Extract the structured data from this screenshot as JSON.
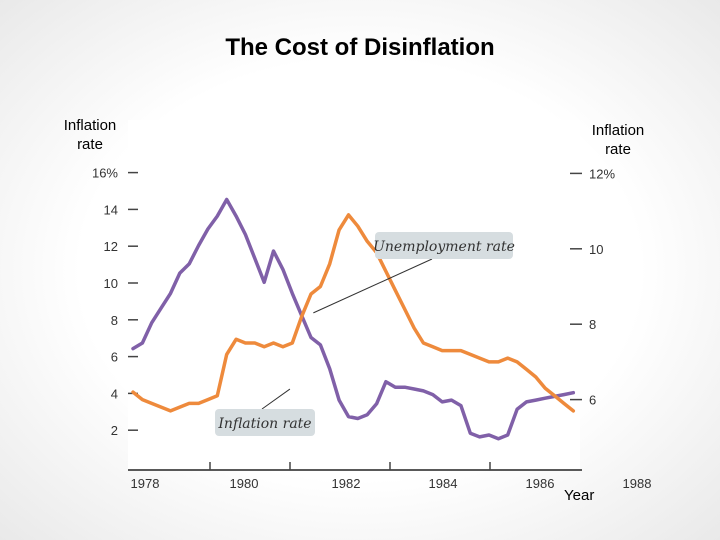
{
  "title": "The Cost of Disinflation",
  "chart_data": {
    "type": "line",
    "title": "The Cost of Disinflation",
    "xlabel": "Year",
    "ylabel_left": "Inflation rate",
    "ylabel_right": "Inflation rate",
    "x_ticks": [
      "1978",
      "1980",
      "1982",
      "1984",
      "1986",
      "1988"
    ],
    "xlim": [
      1978,
      1987.5
    ],
    "left_axis": {
      "ticks": [
        {
          "value": 16,
          "label": "16%"
        },
        {
          "value": 14,
          "label": "14"
        },
        {
          "value": 12,
          "label": "12"
        },
        {
          "value": 10,
          "label": "10"
        },
        {
          "value": 8,
          "label": "8"
        },
        {
          "value": 6,
          "label": "6"
        },
        {
          "value": 4,
          "label": "4"
        },
        {
          "value": 2,
          "label": "2"
        }
      ],
      "ylim": [
        0,
        16
      ]
    },
    "right_axis": {
      "ticks": [
        {
          "value": 12,
          "label": "12%"
        },
        {
          "value": 10,
          "label": "10"
        },
        {
          "value": 8,
          "label": "8"
        },
        {
          "value": 6,
          "label": "6"
        }
      ],
      "ylim": [
        4,
        12
      ]
    },
    "grid": false,
    "series": [
      {
        "name": "Inflation rate",
        "axis": "left",
        "color": "#8060a8",
        "x": [
          1978.0,
          1978.2,
          1978.4,
          1978.6,
          1978.8,
          1979.0,
          1979.2,
          1979.4,
          1979.6,
          1979.8,
          1980.0,
          1980.2,
          1980.4,
          1980.6,
          1980.8,
          1981.0,
          1981.2,
          1981.4,
          1981.6,
          1981.8,
          1982.0,
          1982.2,
          1982.4,
          1982.6,
          1982.8,
          1983.0,
          1983.2,
          1983.4,
          1983.6,
          1983.8,
          1984.0,
          1984.2,
          1984.4,
          1984.6,
          1984.8,
          1985.0,
          1985.2,
          1985.4,
          1985.6,
          1985.8,
          1986.0,
          1986.2,
          1986.4,
          1986.6,
          1986.8,
          1987.0,
          1987.2,
          1987.4
        ],
        "y": [
          6.6,
          6.9,
          8.0,
          8.8,
          9.6,
          10.7,
          11.2,
          12.2,
          13.1,
          13.8,
          14.7,
          13.8,
          12.8,
          11.5,
          10.2,
          11.9,
          10.9,
          9.6,
          8.4,
          7.2,
          6.8,
          5.5,
          3.8,
          2.9,
          2.8,
          3.0,
          3.6,
          4.8,
          4.5,
          4.5,
          4.4,
          4.3,
          4.1,
          3.7,
          3.8,
          3.5,
          2.0,
          1.8,
          1.9,
          1.7,
          1.9,
          3.3,
          3.7,
          3.8,
          3.9,
          4.0,
          4.1,
          4.2
        ]
      },
      {
        "name": "Unemployment rate",
        "axis": "right",
        "color": "#ee8a3c",
        "x": [
          1978.0,
          1978.2,
          1978.4,
          1978.6,
          1978.8,
          1979.0,
          1979.2,
          1979.4,
          1979.6,
          1979.8,
          1980.0,
          1980.2,
          1980.4,
          1980.6,
          1980.8,
          1981.0,
          1981.2,
          1981.4,
          1981.6,
          1981.8,
          1982.0,
          1982.2,
          1982.4,
          1982.6,
          1982.8,
          1983.0,
          1983.2,
          1983.4,
          1983.6,
          1983.8,
          1984.0,
          1984.2,
          1984.4,
          1984.6,
          1984.8,
          1985.0,
          1985.2,
          1985.4,
          1985.6,
          1985.8,
          1986.0,
          1986.2,
          1986.4,
          1986.6,
          1986.8,
          1987.0,
          1987.2,
          1987.4
        ],
        "y": [
          6.2,
          6.0,
          5.9,
          5.8,
          5.7,
          5.8,
          5.9,
          5.9,
          6.0,
          6.1,
          7.2,
          7.6,
          7.5,
          7.5,
          7.4,
          7.5,
          7.4,
          7.5,
          8.2,
          8.8,
          9.0,
          9.6,
          10.5,
          10.9,
          10.6,
          10.2,
          9.9,
          9.4,
          8.9,
          8.4,
          7.9,
          7.5,
          7.4,
          7.3,
          7.3,
          7.3,
          7.2,
          7.1,
          7.0,
          7.0,
          7.1,
          7.0,
          6.8,
          6.6,
          6.3,
          6.1,
          5.9,
          5.7
        ]
      }
    ],
    "annotations": [
      {
        "text": "Unemployment rate",
        "target_series": "Unemployment rate",
        "target": [
          1981.85,
          8.3
        ]
      },
      {
        "text": "Inflation rate",
        "target_series": "Inflation rate",
        "target": [
          1981.35,
          4.4
        ]
      }
    ]
  }
}
